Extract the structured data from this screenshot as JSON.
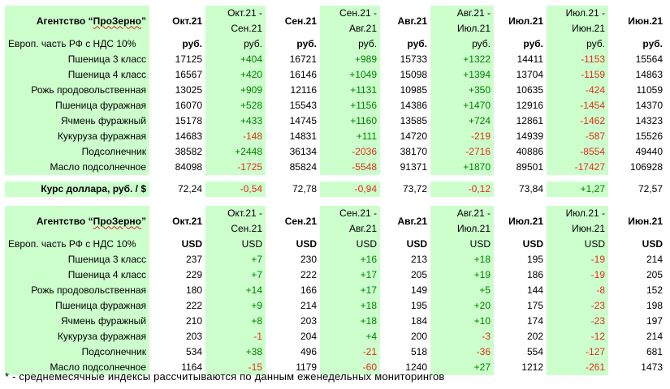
{
  "rub_table": {
    "agency_prefix": "Агентство “",
    "agency_name": "ПроЗерно",
    "agency_suffix": "”",
    "headers": [
      {
        "line1": "Окт.21",
        "line2": ""
      },
      {
        "line1": "Окт.21 -",
        "line2": "Сен.21"
      },
      {
        "line1": "Сен.21",
        "line2": ""
      },
      {
        "line1": "Сен.21 -",
        "line2": "Авг.21"
      },
      {
        "line1": "Авг.21",
        "line2": ""
      },
      {
        "line1": "Авг.21 -",
        "line2": "Июл.21"
      },
      {
        "line1": "Июл.21",
        "line2": ""
      },
      {
        "line1": "Июл.21 -",
        "line2": "Июн.21"
      },
      {
        "line1": "Июн.21",
        "line2": ""
      }
    ],
    "unit_row_label": "Европ. часть РФ с НДС 10%",
    "units": [
      "руб.",
      "руб.",
      "руб.",
      "руб.",
      "руб.",
      "руб.",
      "руб.",
      "руб.",
      "руб."
    ],
    "rows": [
      {
        "label": "Пшеница 3 класс",
        "values": [
          "17125",
          "+404",
          "16721",
          "+989",
          "15733",
          "+1322",
          "14411",
          "-1153",
          "15564"
        ]
      },
      {
        "label": "Пшеница 4 класс",
        "values": [
          "16567",
          "+420",
          "16146",
          "+1049",
          "15098",
          "+1394",
          "13704",
          "-1159",
          "14863"
        ]
      },
      {
        "label": "Рожь продовольственная",
        "values": [
          "13025",
          "+909",
          "12116",
          "+1131",
          "10985",
          "+350",
          "10635",
          "-424",
          "11059"
        ]
      },
      {
        "label": "Пшеница фуражная",
        "values": [
          "16070",
          "+528",
          "15543",
          "+1156",
          "14386",
          "+1470",
          "12916",
          "-1454",
          "14370"
        ]
      },
      {
        "label": "Ячмень фуражный",
        "values": [
          "15178",
          "+433",
          "14745",
          "+1160",
          "13585",
          "+724",
          "12861",
          "-1462",
          "14323"
        ]
      },
      {
        "label": "Кукуруза фуражная",
        "values": [
          "14683",
          "-148",
          "14831",
          "+111",
          "14720",
          "-219",
          "14939",
          "-587",
          "15526"
        ]
      },
      {
        "label": "Подсолнечник",
        "values": [
          "38582",
          "+2448",
          "36134",
          "-2036",
          "38170",
          "-2716",
          "40886",
          "-8554",
          "49440"
        ]
      },
      {
        "label": "Масло подсолнечное",
        "values": [
          "84098",
          "-1725",
          "85824",
          "-5548",
          "91371",
          "+1870",
          "89501",
          "-17427",
          "106928"
        ]
      }
    ]
  },
  "exchange_rate": {
    "label": "Курс доллара, руб. / $",
    "values": [
      "72,24",
      "-0,54",
      "72,78",
      "-0,94",
      "73,72",
      "-0,12",
      "73,84",
      "+1,27",
      "72,57"
    ]
  },
  "usd_table": {
    "agency_prefix": "Агентство “",
    "agency_name": "ПроЗерно",
    "agency_suffix": "”",
    "headers": [
      {
        "line1": "Окт.21",
        "line2": ""
      },
      {
        "line1": "Окт.21 -",
        "line2": "Сен.21"
      },
      {
        "line1": "Сен.21",
        "line2": ""
      },
      {
        "line1": "Сен.21 -",
        "line2": "Авг.21"
      },
      {
        "line1": "Авг.21",
        "line2": ""
      },
      {
        "line1": "Авг.21 -",
        "line2": "Июл.21"
      },
      {
        "line1": "Июл.21",
        "line2": ""
      },
      {
        "line1": "Июл.21 -",
        "line2": "Июн.21"
      },
      {
        "line1": "Июн.21",
        "line2": ""
      }
    ],
    "unit_row_label": "Европ. часть РФ с НДС 10%",
    "units": [
      "USD",
      "USD",
      "USD",
      "USD",
      "USD",
      "USD",
      "USD",
      "USD",
      "USD"
    ],
    "rows": [
      {
        "label": "Пшеница 3 класс",
        "values": [
          "237",
          "+7",
          "230",
          "+16",
          "213",
          "+18",
          "195",
          "-19",
          "214"
        ]
      },
      {
        "label": "Пшеница 4 класс",
        "values": [
          "229",
          "+7",
          "222",
          "+17",
          "205",
          "+19",
          "186",
          "-19",
          "205"
        ]
      },
      {
        "label": "Рожь продовольственная",
        "values": [
          "180",
          "+14",
          "166",
          "+17",
          "149",
          "+5",
          "144",
          "-8",
          "152"
        ]
      },
      {
        "label": "Пшеница фуражная",
        "values": [
          "222",
          "+9",
          "214",
          "+18",
          "195",
          "+20",
          "175",
          "-23",
          "198"
        ]
      },
      {
        "label": "Ячмень фуражный",
        "values": [
          "210",
          "+8",
          "203",
          "+18",
          "184",
          "+10",
          "174",
          "-23",
          "197"
        ]
      },
      {
        "label": "Кукуруза фуражная",
        "values": [
          "203",
          "-1",
          "204",
          "+4",
          "200",
          "-3",
          "202",
          "-12",
          "214"
        ]
      },
      {
        "label": "Подсолнечник",
        "values": [
          "534",
          "+38",
          "496",
          "-21",
          "518",
          "-36",
          "554",
          "-127",
          "681"
        ]
      },
      {
        "label": "Масло подсолнечное",
        "values": [
          "1164",
          "-15",
          "1179",
          "-60",
          "1240",
          "+27",
          "1212",
          "-261",
          "1473"
        ]
      }
    ]
  },
  "footnote": "* - среднемесячные индексы рассчитываются по данным еженедельных мониторингов",
  "colors": {
    "highlight_green": "#ccffcc",
    "positive": "#008000",
    "negative": "#e0301e"
  }
}
